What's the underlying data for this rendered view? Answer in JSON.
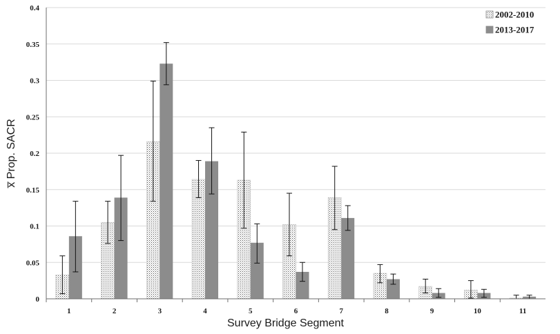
{
  "chart_data": {
    "type": "bar",
    "title": "",
    "xlabel": "Survey Bridge Segment",
    "ylabel": "x̅ Prop. SACR",
    "categories": [
      "1",
      "2",
      "3",
      "4",
      "5",
      "6",
      "7",
      "8",
      "9",
      "10",
      "11"
    ],
    "ylim": [
      0,
      0.4
    ],
    "yticks": [
      0,
      0.05,
      0.1,
      0.15,
      0.2,
      0.25,
      0.3,
      0.35,
      0.4
    ],
    "ytick_labels": [
      "0",
      "0.05",
      "0.1",
      "0.15",
      "0.2",
      "0.25",
      "0.3",
      "0.35",
      "0.4"
    ],
    "grid": true,
    "legend_position": "top-right",
    "series": [
      {
        "name": "2002-2010",
        "pattern": "dotted",
        "color": "#ffffff",
        "values": [
          0.033,
          0.105,
          0.216,
          0.164,
          0.163,
          0.102,
          0.139,
          0.035,
          0.017,
          0.012,
          0.001
        ],
        "error_low": [
          0.007,
          0.076,
          0.134,
          0.139,
          0.097,
          0.059,
          0.095,
          0.022,
          0.008,
          0.001,
          0.0
        ],
        "error_high": [
          0.059,
          0.134,
          0.299,
          0.19,
          0.229,
          0.145,
          0.182,
          0.047,
          0.027,
          0.025,
          0.005
        ]
      },
      {
        "name": "2013-2017",
        "pattern": "solid",
        "color": "#8c8c8c",
        "values": [
          0.086,
          0.139,
          0.323,
          0.189,
          0.077,
          0.037,
          0.111,
          0.027,
          0.008,
          0.008,
          0.003
        ],
        "error_low": [
          0.037,
          0.08,
          0.294,
          0.144,
          0.049,
          0.024,
          0.094,
          0.02,
          0.002,
          0.002,
          0.0
        ],
        "error_high": [
          0.134,
          0.197,
          0.352,
          0.235,
          0.103,
          0.05,
          0.128,
          0.034,
          0.014,
          0.013,
          0.005
        ]
      }
    ]
  }
}
